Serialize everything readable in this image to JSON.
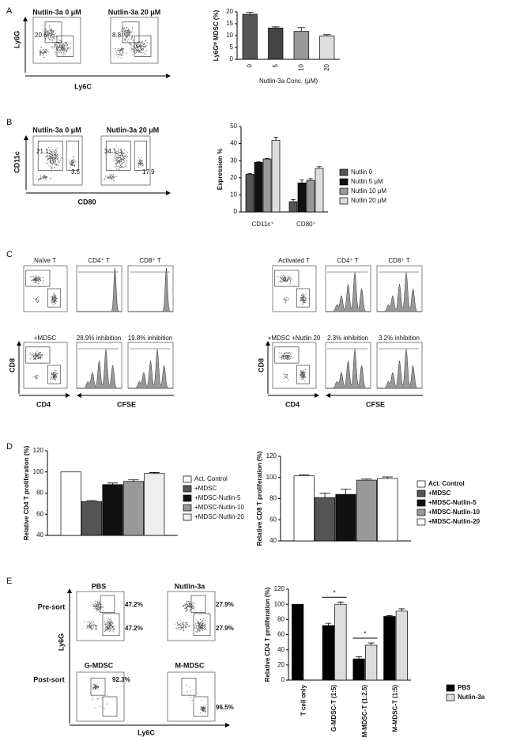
{
  "figure": {
    "A": {
      "letter": "A",
      "titles": [
        "Nutlin-3a 0 μM",
        "Nutlin-3a 20 μM"
      ],
      "gates": [
        "20.6",
        "8.8"
      ],
      "y_label": "Ly6G",
      "x_label": "Ly6C"
    },
    "B": {
      "letter": "B",
      "titles": [
        "Nutlin-3a 0 μM",
        "Nutlin-3a 20 μM"
      ],
      "gates": [
        "21.1",
        "3.5",
        "34.1",
        "17.9"
      ],
      "y_label": "CD11c",
      "x_label": "CD80"
    },
    "C": {
      "letter": "C",
      "row1": [
        "Naïve T",
        "CD4⁺ T",
        "CD8⁺ T",
        "Activated T",
        "CD4⁺ T",
        "CD8⁺ T"
      ],
      "row2": [
        "+MDSC",
        "28.9% inhibition",
        "19.8% inhibition",
        "+MDSC +Nutlin 20",
        "2.3% inhibition",
        "3.2% inhibition"
      ],
      "y_label": "CD8",
      "x_label": "CD4",
      "hist_label": "CFSE"
    },
    "D": {
      "letter": "D"
    },
    "E": {
      "letter": "E",
      "titles": [
        "PBS",
        "Nutlin-3a"
      ],
      "rows": [
        "Pre-sort",
        "Post-sort"
      ],
      "post_titles": [
        "G-MDSC",
        "M-MDSC"
      ],
      "gates": [
        "47.2%",
        "47.2%",
        "27.9%",
        "27.9%",
        "92.3%",
        "96.5%"
      ],
      "y_label": "Ly6G",
      "x_label": "Ly6C"
    }
  },
  "chart_data": [
    {
      "type": "bar",
      "ylabel": "Ly6Gʰⁱ MDSC (%)",
      "xlabel": "Nutlin-3a Conc. (μM)",
      "categories": [
        "0",
        "5",
        "10",
        "20"
      ],
      "values": [
        19,
        13.2,
        11.8,
        9.8
      ],
      "errors": [
        0.8,
        0.5,
        1.6,
        0.6
      ],
      "colors": [
        "#555555",
        "#444444",
        "#999999",
        "#dddddd"
      ],
      "ylim": [
        0,
        20
      ],
      "yticks": [
        0,
        5,
        10,
        15,
        20
      ]
    },
    {
      "type": "bar",
      "ylabel": "Expression %",
      "categories": [
        "CD11c⁺",
        "CD80⁺"
      ],
      "series": [
        {
          "name": "Nutlin 0",
          "color": "#555555",
          "values": [
            22,
            6
          ],
          "errors": [
            0.5,
            1.2
          ]
        },
        {
          "name": "Nutlin 5 μM",
          "color": "#111111",
          "values": [
            29,
            17
          ],
          "errors": [
            0.5,
            1.8
          ]
        },
        {
          "name": "Nutlin 10 μM",
          "color": "#999999",
          "values": [
            31,
            18.5
          ],
          "errors": [
            0.3,
            1
          ]
        },
        {
          "name": "Nutlin 20 μM",
          "color": "#dddddd",
          "values": [
            42,
            25.5
          ],
          "errors": [
            1.8,
            1
          ]
        }
      ],
      "ylim": [
        0,
        50
      ],
      "yticks": [
        0,
        10,
        20,
        30,
        40,
        50
      ]
    },
    {
      "type": "bar",
      "ylabel": "Relative CD4 T proliferation (%)",
      "categories": [
        null
      ],
      "series": [
        {
          "name": "Act. Control",
          "color": "#ffffff",
          "values": [
            100
          ],
          "errors": [
            null
          ]
        },
        {
          "name": "+MDSC",
          "color": "#555555",
          "values": [
            72
          ],
          "errors": [
            1
          ]
        },
        {
          "name": "+MDSC-Nutlin-5",
          "color": "#111111",
          "values": [
            88
          ],
          "errors": [
            1.5
          ]
        },
        {
          "name": "+MDSC-Nutlin-10",
          "color": "#999999",
          "values": [
            91
          ],
          "errors": [
            1.5
          ]
        },
        {
          "name": "+MDSC-Nutlin-20",
          "color": "#eeeeee",
          "values": [
            98.5
          ],
          "errors": [
            1
          ]
        }
      ],
      "ylim": [
        40,
        120
      ],
      "yticks": [
        40,
        60,
        80,
        100,
        120
      ]
    },
    {
      "type": "bar",
      "ylabel": "Relative CD8 T proliferation (%)",
      "categories": [
        null
      ],
      "series": [
        {
          "name": "Act. Control",
          "color": "#ffffff",
          "values": [
            101.5
          ],
          "errors": [
            1
          ]
        },
        {
          "name": "+MDSC",
          "color": "#555555",
          "values": [
            81
          ],
          "errors": [
            4
          ]
        },
        {
          "name": "+MDSC-Nutlin-5",
          "color": "#111111",
          "values": [
            84
          ],
          "errors": [
            5
          ]
        },
        {
          "name": "+MDSC-Nutlin-10",
          "color": "#999999",
          "values": [
            97.5
          ],
          "errors": [
            1
          ]
        },
        {
          "name": "+MDSC-Nutlin-20",
          "color": "#ffffff",
          "values": [
            99
          ],
          "errors": [
            1.5
          ]
        }
      ],
      "ylim": [
        40,
        120
      ],
      "yticks": [
        40,
        60,
        80,
        100,
        120
      ]
    },
    {
      "type": "bar",
      "ylabel": "Relative CD4 T proliferation (%)",
      "categories": [
        "T cell only",
        "G-MDSC-T (1:5)",
        "M-MDSC-T (1:2.5)",
        "M-MDSC-T (1:5)"
      ],
      "series": [
        {
          "name": "PBS",
          "color": "#000000",
          "values": [
            100,
            72,
            28,
            84
          ],
          "errors": [
            null,
            3,
            3,
            1
          ]
        },
        {
          "name": "Nutlin-3a",
          "color": "#dddddd",
          "values": [
            null,
            100,
            46,
            91
          ],
          "errors": [
            null,
            3,
            3,
            3
          ]
        }
      ],
      "annotations": [
        "*",
        "*"
      ],
      "ylim": [
        0,
        120
      ],
      "yticks": [
        0,
        20,
        40,
        60,
        80,
        100,
        120
      ]
    }
  ]
}
